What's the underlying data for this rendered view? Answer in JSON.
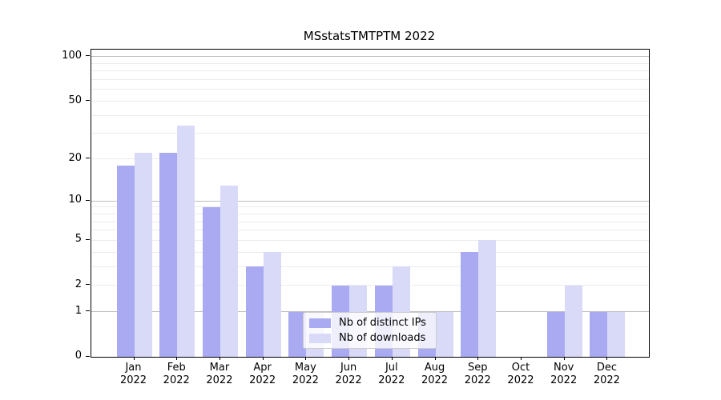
{
  "title": "MSstatsTMTPTM 2022",
  "colors": {
    "distinct_ips": "#aaaaf2",
    "downloads": "#d9d9f8",
    "grid_minor": "#ebebeb",
    "grid_major": "#bdbdbd",
    "axis": "#000000",
    "legend_border": "#cccccc"
  },
  "legend": {
    "items": [
      {
        "label": "Nb of distinct IPs",
        "color": "#aaaaf2"
      },
      {
        "label": "Nb of downloads",
        "color": "#d9d9f8"
      }
    ]
  },
  "chart_data": {
    "type": "bar",
    "title": "MSstatsTMTPTM 2022",
    "categories": [
      "Jan",
      "Feb",
      "Mar",
      "Apr",
      "May",
      "Jun",
      "Jul",
      "Aug",
      "Sep",
      "Oct",
      "Nov",
      "Dec"
    ],
    "category_year": "2022",
    "series": [
      {
        "name": "Nb of distinct IPs",
        "color": "#aaaaf2",
        "values": [
          18,
          22,
          9,
          3,
          1,
          2,
          2,
          1,
          4,
          0,
          1,
          1
        ]
      },
      {
        "name": "Nb of downloads",
        "color": "#d9d9f8",
        "values": [
          22,
          34,
          13,
          4,
          1,
          2,
          3,
          1,
          5,
          0,
          2,
          1
        ]
      }
    ],
    "xlabel": "",
    "ylabel": "",
    "y_scale": "log1p",
    "y_ticks": [
      0,
      1,
      2,
      5,
      10,
      20,
      50,
      100
    ],
    "grid_values_minor": [
      2,
      3,
      4,
      5,
      6,
      7,
      8,
      9,
      20,
      30,
      40,
      50,
      60,
      70,
      80,
      90
    ],
    "grid_values_major": [
      1,
      10,
      100
    ],
    "ylim": [
      0,
      112
    ],
    "grid": "horizontal",
    "legend_position": "lower-center"
  }
}
